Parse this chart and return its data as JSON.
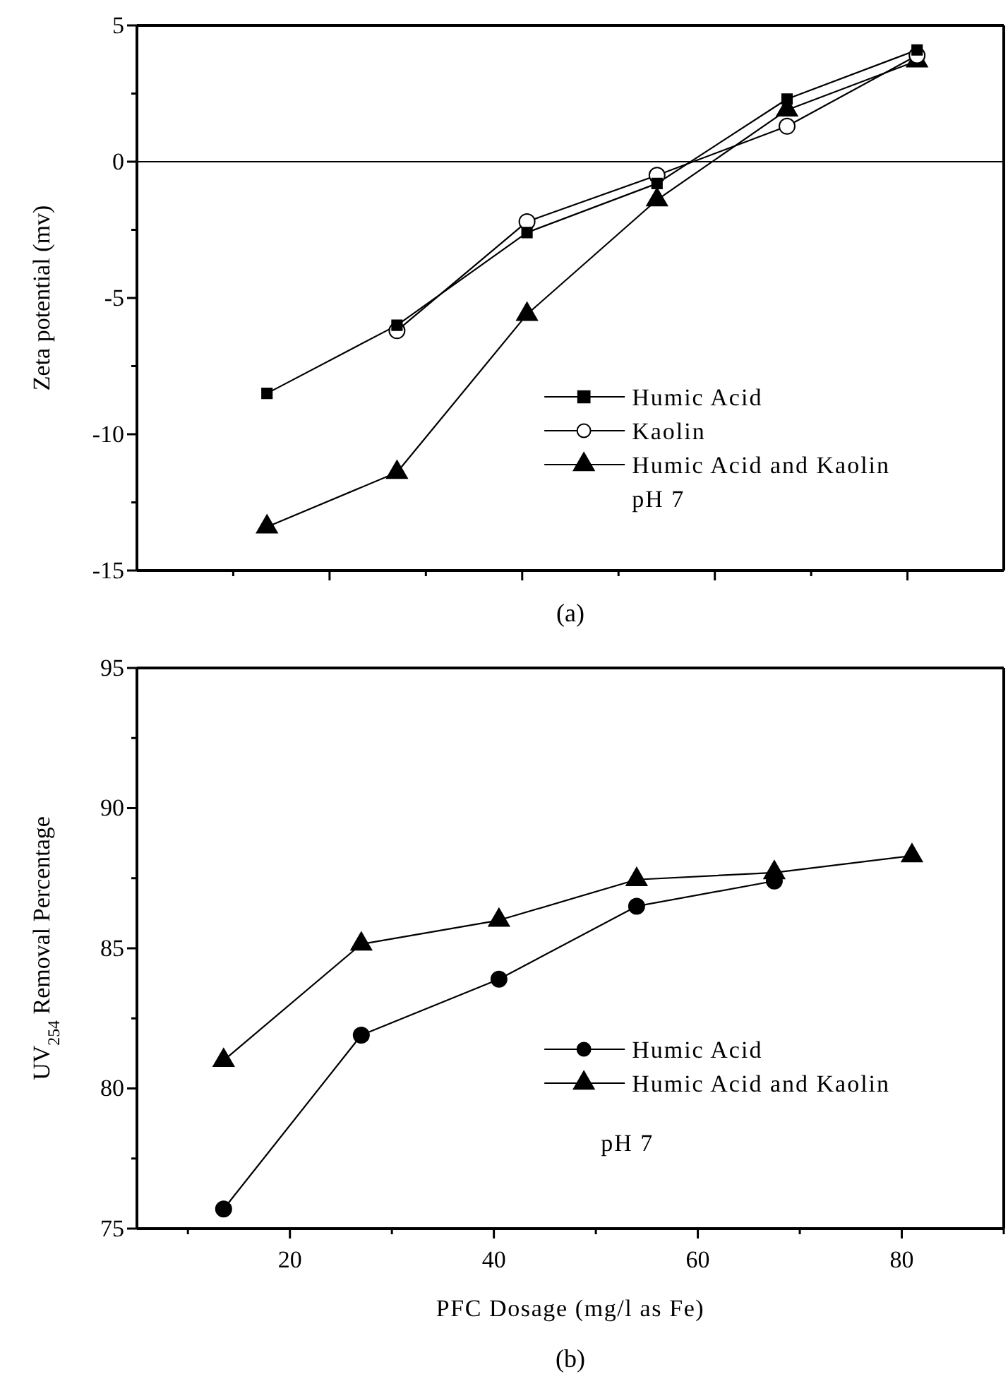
{
  "chart_data": [
    {
      "type": "line",
      "ylabel": "Zeta potential (mv)",
      "annotations": [
        "pH 7",
        "(a)"
      ],
      "categories": [
        null,
        null,
        null,
        null,
        null,
        null
      ],
      "ylim": [
        -15,
        5
      ],
      "yticks": [
        -15,
        {
          "value": -12.5,
          "label": null
        },
        -10,
        {
          "value": -7.5,
          "label": null
        },
        -5,
        {
          "value": -2.5,
          "label": null
        },
        0,
        {
          "value": 2.5,
          "label": null
        },
        5
      ],
      "tick_labels": "y",
      "legend": "bottom right",
      "grid": false,
      "ref_lines": [
        {
          "axis": "y",
          "value": 0,
          "color": "#000000"
        }
      ],
      "series": [
        {
          "name": "Humic Acid",
          "color": "#000000",
          "marker": "square",
          "values": [
            -8.5,
            -6.0,
            -2.6,
            -0.8,
            2.3,
            4.1
          ]
        },
        {
          "name": "Kaolin",
          "color": "#000000",
          "marker": "circle",
          "colors": [
            null,
            "#ffffff",
            "#ffffff",
            "#ffffff",
            "#ffffff",
            "#ffffff"
          ],
          "values": [
            null,
            -6.2,
            -2.2,
            -0.5,
            1.3,
            3.9
          ]
        },
        {
          "name": "Humic Acid and Kaolin",
          "color": "#000000",
          "marker": "triangle",
          "values": [
            -13.4,
            -11.4,
            -5.6,
            -1.4,
            1.9,
            3.7
          ]
        }
      ]
    },
    {
      "type": "line",
      "xlabel": "PFC Dosage (mg/l as Fe)",
      "ylabel": "UV$_{254}$ Removal Percentage",
      "annotations": [
        "pH 7",
        "(b)"
      ],
      "xlim": [
        5,
        90
      ],
      "xticks": [
        {
          "value": 10,
          "label": null
        },
        20,
        {
          "value": 30,
          "label": null
        },
        40,
        {
          "value": 50,
          "label": null
        },
        60,
        {
          "value": 70,
          "label": null
        },
        80,
        {
          "value": 90,
          "label": null
        }
      ],
      "ylim": [
        75,
        95
      ],
      "yticks": [
        75,
        {
          "value": 77.5,
          "label": null
        },
        80,
        {
          "value": 82.5,
          "label": null
        },
        85,
        {
          "value": 87.5,
          "label": null
        },
        90,
        {
          "value": 92.5,
          "label": null
        },
        95
      ],
      "legend": "bottom right",
      "grid": false,
      "x": [
        13.5,
        27,
        40.5,
        54,
        67.5,
        81
      ],
      "series": [
        {
          "name": "Humic Acid",
          "color": "#000000",
          "marker": "circle",
          "values": [
            75.7,
            81.9,
            83.9,
            86.5,
            87.4,
            null
          ]
        },
        {
          "name": "Humic Acid and Kaolin",
          "color": "#000000",
          "marker": "triangle",
          "values": [
            81.0,
            85.15,
            86.0,
            87.45,
            87.7,
            88.3
          ]
        }
      ]
    }
  ]
}
